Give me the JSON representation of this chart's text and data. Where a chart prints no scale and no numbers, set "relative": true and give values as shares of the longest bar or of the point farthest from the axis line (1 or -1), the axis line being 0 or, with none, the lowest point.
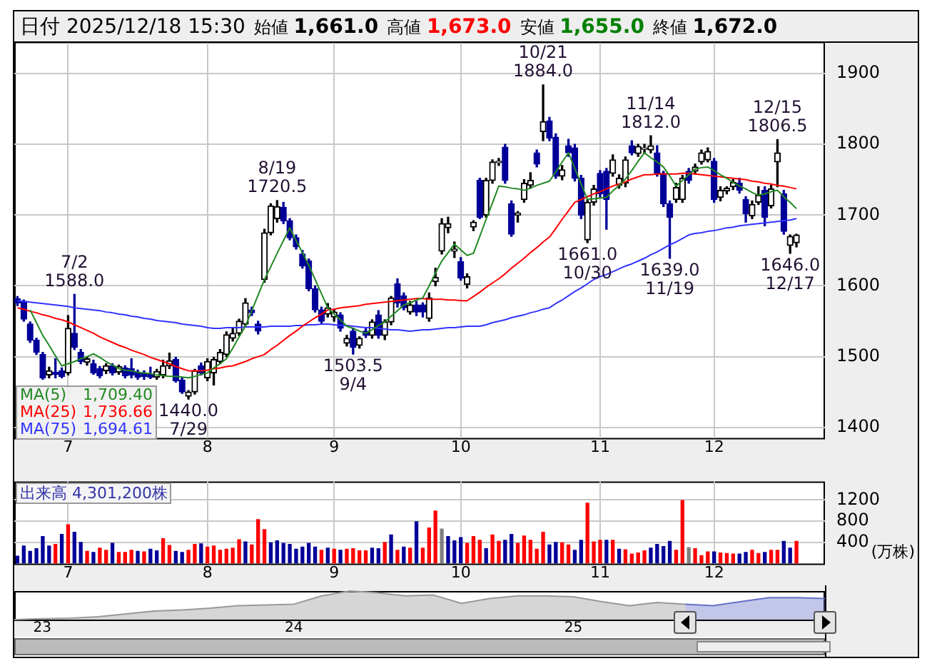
{
  "chart_data": [
    {
      "type": "candlestick",
      "title": "日付 2025/12/18 15:30",
      "annotations": [
        "始値 1,661.0",
        "高値 1,673.0",
        "安値 1,655.0",
        "終値 1,672.0",
        "1,709.40",
        "1,736.66",
        "1,694.61",
        {
          "text": "7/2\n1588.0",
          "y": 1588
        },
        {
          "text": "1440.0\n7/29",
          "y": 1440
        },
        {
          "text": "8/19\n1720.5",
          "y": 1720.5
        },
        {
          "text": "1503.5\n9/4",
          "y": 1503.5
        },
        {
          "text": "10/21\n1884.0",
          "y": 1884
        },
        {
          "text": "1661.0\n10/30",
          "y": 1661
        },
        {
          "text": "11/14\n1812.0",
          "y": 1812
        },
        {
          "text": "1639.0\n11/19",
          "y": 1639
        },
        {
          "text": "12/15\n1806.5",
          "y": 1806.5
        },
        {
          "text": "1646.0\n12/17",
          "y": 1646
        }
      ],
      "categories": [
        null,
        null,
        null,
        null,
        null,
        null,
        null,
        null,
        "7",
        null,
        null,
        null,
        null,
        null,
        null,
        null,
        null,
        null,
        null,
        null,
        null,
        null,
        null,
        null,
        null,
        null,
        null,
        null,
        null,
        null,
        "8",
        null,
        null,
        null,
        null,
        null,
        null,
        null,
        null,
        null,
        null,
        null,
        null,
        null,
        null,
        null,
        null,
        null,
        null,
        null,
        "9",
        null,
        null,
        null,
        null,
        null,
        null,
        null,
        null,
        null,
        null,
        null,
        null,
        null,
        null,
        null,
        null,
        null,
        null,
        null,
        "10",
        null,
        null,
        null,
        null,
        null,
        null,
        null,
        null,
        null,
        null,
        null,
        null,
        null,
        null,
        null,
        null,
        null,
        null,
        null,
        null,
        null,
        "11",
        null,
        null,
        null,
        null,
        null,
        null,
        null,
        null,
        null,
        null,
        null,
        null,
        null,
        null,
        null,
        null,
        null,
        "12",
        null,
        null,
        null,
        null,
        null,
        null,
        null,
        null,
        null,
        null,
        null,
        null,
        null,
        null,
        null,
        null,
        null
      ],
      "ohlc": [
        [
          1582,
          1585,
          1572,
          1576
        ],
        [
          1578,
          1580,
          1550,
          1553
        ],
        [
          1546,
          1549,
          1520,
          1523
        ],
        [
          1523,
          1526,
          1503,
          1506
        ],
        [
          1503,
          1506,
          1468,
          1470
        ],
        [
          1474,
          1485,
          1470,
          1480
        ],
        [
          1478,
          1497,
          1470,
          1475
        ],
        [
          1480,
          1484,
          1470,
          1472
        ],
        [
          1477,
          1558,
          1474,
          1540
        ],
        [
          1533,
          1588,
          1510,
          1513
        ],
        [
          1506,
          1510,
          1490,
          1493
        ],
        [
          1492,
          1500,
          1488,
          1497
        ],
        [
          1490,
          1495,
          1475,
          1477
        ],
        [
          1483,
          1486,
          1470,
          1473
        ],
        [
          1480,
          1490,
          1476,
          1487
        ],
        [
          1487,
          1490,
          1474,
          1477
        ],
        [
          1478,
          1488,
          1475,
          1486
        ],
        [
          1484,
          1487,
          1470,
          1473
        ],
        [
          1483,
          1497,
          1470,
          1474
        ],
        [
          1478,
          1481,
          1468,
          1471
        ],
        [
          1476,
          1480,
          1468,
          1472
        ],
        [
          1475,
          1485,
          1469,
          1471
        ],
        [
          1471,
          1482,
          1468,
          1479
        ],
        [
          1474,
          1495,
          1470,
          1487
        ],
        [
          1487,
          1505,
          1483,
          1494
        ],
        [
          1496,
          1499,
          1464,
          1466
        ],
        [
          1467,
          1470,
          1448,
          1450
        ],
        [
          1444,
          1452,
          1440,
          1450
        ],
        [
          1450,
          1482,
          1447,
          1480
        ],
        [
          1487,
          1491,
          1474,
          1477
        ],
        [
          1470,
          1497,
          1466,
          1493
        ],
        [
          1477,
          1499,
          1460,
          1496
        ],
        [
          1493,
          1510,
          1490,
          1506
        ],
        [
          1503,
          1535,
          1500,
          1531
        ],
        [
          1526,
          1540,
          1522,
          1533
        ],
        [
          1533,
          1553,
          1530,
          1550
        ],
        [
          1546,
          1582,
          1544,
          1576
        ],
        [
          1566,
          1570,
          1558,
          1562
        ],
        [
          1546,
          1550,
          1532,
          1536
        ],
        [
          1609,
          1680,
          1605,
          1675
        ],
        [
          1675,
          1716,
          1672,
          1713
        ],
        [
          1695,
          1720.5,
          1690,
          1712
        ],
        [
          1711,
          1718,
          1688,
          1692
        ],
        [
          1692,
          1695,
          1665,
          1668
        ],
        [
          1668,
          1672,
          1652,
          1655
        ],
        [
          1645,
          1650,
          1625,
          1628
        ],
        [
          1635,
          1638,
          1593,
          1596
        ],
        [
          1596,
          1600,
          1563,
          1566
        ],
        [
          1566,
          1570,
          1547,
          1550
        ],
        [
          1560,
          1575,
          1556,
          1569
        ],
        [
          1556,
          1566,
          1550,
          1563
        ],
        [
          1559,
          1562,
          1536,
          1540
        ],
        [
          1519,
          1530,
          1515,
          1526
        ],
        [
          1536,
          1540,
          1503.5,
          1513
        ],
        [
          1516,
          1528,
          1512,
          1526
        ],
        [
          1536,
          1540,
          1527,
          1530
        ],
        [
          1530,
          1552,
          1526,
          1549
        ],
        [
          1559,
          1565,
          1526,
          1530
        ],
        [
          1530,
          1552,
          1524,
          1549
        ],
        [
          1549,
          1585,
          1545,
          1583
        ],
        [
          1603,
          1610,
          1570,
          1576
        ],
        [
          1586,
          1590,
          1566,
          1569
        ],
        [
          1563,
          1578,
          1560,
          1573
        ],
        [
          1573,
          1578,
          1558,
          1563
        ],
        [
          1573,
          1576,
          1556,
          1563
        ],
        [
          1554,
          1590,
          1550,
          1583
        ],
        [
          1606,
          1625,
          1600,
          1612
        ],
        [
          1649,
          1695,
          1645,
          1688
        ],
        [
          1682,
          1697,
          1675,
          1688
        ],
        [
          1649,
          1662,
          1640,
          1652
        ],
        [
          1634,
          1640,
          1608,
          1611
        ],
        [
          1602,
          1617,
          1597,
          1613
        ],
        [
          1683,
          1692,
          1678,
          1690
        ],
        [
          1749,
          1752,
          1695,
          1697
        ],
        [
          1700,
          1752,
          1697,
          1749
        ],
        [
          1749,
          1778,
          1745,
          1775
        ],
        [
          1774,
          1780,
          1770,
          1776
        ],
        [
          1796,
          1800,
          1745,
          1749
        ],
        [
          1716,
          1720,
          1670,
          1673
        ],
        [
          1700,
          1705,
          1690,
          1703
        ],
        [
          1722,
          1750,
          1718,
          1745
        ],
        [
          1742,
          1760,
          1738,
          1749
        ],
        [
          1788,
          1792,
          1768,
          1772
        ],
        [
          1818,
          1884,
          1805,
          1832
        ],
        [
          1833,
          1838,
          1805,
          1809
        ],
        [
          1810,
          1815,
          1752,
          1755
        ],
        [
          1755,
          1770,
          1750,
          1764
        ],
        [
          1798,
          1807,
          1783,
          1788
        ],
        [
          1795,
          1800,
          1748,
          1752
        ],
        [
          1752,
          1756,
          1695,
          1700
        ],
        [
          1665,
          1722,
          1661,
          1718
        ],
        [
          1718,
          1742,
          1714,
          1737
        ],
        [
          1759,
          1763,
          1725,
          1730
        ],
        [
          1762,
          1766,
          1680,
          1722
        ],
        [
          1759,
          1785,
          1755,
          1778
        ],
        [
          1742,
          1757,
          1738,
          1752
        ],
        [
          1745,
          1782,
          1740,
          1778
        ],
        [
          1798,
          1805,
          1785,
          1788
        ],
        [
          1787,
          1800,
          1783,
          1797
        ],
        [
          1793,
          1800,
          1788,
          1795
        ],
        [
          1792,
          1812,
          1788,
          1798
        ],
        [
          1788,
          1798,
          1755,
          1759
        ],
        [
          1759,
          1762,
          1712,
          1716
        ],
        [
          1716,
          1720,
          1639,
          1697
        ],
        [
          1722,
          1745,
          1718,
          1739
        ],
        [
          1722,
          1756,
          1718,
          1752
        ],
        [
          1762,
          1766,
          1745,
          1749
        ],
        [
          1762,
          1772,
          1758,
          1768
        ],
        [
          1775,
          1792,
          1772,
          1788
        ],
        [
          1778,
          1795,
          1775,
          1790
        ],
        [
          1776,
          1780,
          1718,
          1722
        ],
        [
          1725,
          1740,
          1720,
          1735
        ],
        [
          1734,
          1740,
          1730,
          1738
        ],
        [
          1740,
          1750,
          1736,
          1746
        ],
        [
          1745,
          1752,
          1731,
          1735
        ],
        [
          1722,
          1726,
          1690,
          1702
        ],
        [
          1699,
          1720,
          1695,
          1715
        ],
        [
          1718,
          1740,
          1715,
          1728
        ],
        [
          1735,
          1740,
          1685,
          1697
        ],
        [
          1713,
          1742,
          1710,
          1737
        ],
        [
          1775,
          1806.5,
          1740,
          1788
        ],
        [
          1730,
          1735,
          1673,
          1677
        ],
        [
          1657,
          1672,
          1646,
          1670
        ],
        [
          1661,
          1673,
          1655,
          1672
        ],
        null,
        null,
        null,
        null
      ],
      "series": [
        {
          "name": "MA(5)",
          "type": "line",
          "color": "#228822",
          "values": [
            null,
            null,
            1566,
            1548,
            1530,
            1516,
            1501,
            1487,
            1490,
            1493,
            1497,
            1500,
            1504,
            1499,
            1493,
            1488,
            1483,
            1481,
            1480,
            1478,
            1477,
            1476,
            1474,
            1473,
            1472,
            1472,
            1471,
            1470,
            1472,
            1475,
            1477,
            1484,
            1490,
            1497,
            1512,
            1528,
            1543,
            1565,
            1587,
            1609,
            1627,
            1646,
            1664,
            1682,
            1664,
            1647,
            1629,
            1609,
            1589,
            1569,
            1560,
            1552,
            1543,
            1540,
            1536,
            1533,
            1538,
            1544,
            1549,
            1557,
            1565,
            1573,
            1576,
            1580,
            1583,
            1600,
            1618,
            1635,
            1647,
            1659,
            1651,
            1643,
            1646,
            1670,
            1694,
            1717,
            1741,
            1740,
            1738,
            1737,
            1735,
            1738,
            1742,
            1745,
            1748,
            1761,
            1775,
            1788,
            1766,
            1744,
            1722,
            1723,
            1724,
            1725,
            1734,
            1742,
            1751,
            1763,
            1776,
            1788,
            1781,
            1775,
            1768,
            1755,
            1741,
            1749,
            1757,
            1765,
            1767,
            1768,
            1763,
            1757,
            1752,
            1746,
            1741,
            1737,
            1732,
            1728,
            1730,
            1733,
            1735,
            1726,
            1718,
            1709,
            null,
            null,
            null,
            null
          ]
        },
        {
          "name": "MA(25)",
          "type": "line",
          "color": "#ff0000",
          "values": [
            1569,
            1567,
            1564,
            1562,
            1559,
            1557,
            1554,
            1552,
            1549,
            1545,
            1541,
            1537,
            1533,
            1528,
            1524,
            1520,
            1516,
            1513,
            1509,
            1506,
            1503,
            1499,
            1496,
            1493,
            1490,
            1486,
            1483,
            1480,
            1480,
            1480,
            1481,
            1483,
            1484,
            1486,
            1487,
            1490,
            1493,
            1497,
            1500,
            1503,
            1510,
            1516,
            1523,
            1530,
            1536,
            1543,
            1549,
            1555,
            1560,
            1566,
            1567,
            1569,
            1570,
            1571,
            1572,
            1574,
            1575,
            1576,
            1577,
            1578,
            1579,
            1580,
            1581,
            1582,
            1582,
            1581,
            1581,
            1581,
            1580,
            1580,
            1579,
            1579,
            1585,
            1591,
            1598,
            1604,
            1610,
            1617,
            1625,
            1632,
            1639,
            1647,
            1654,
            1662,
            1669,
            1681,
            1694,
            1706,
            1718,
            1722,
            1726,
            1730,
            1733,
            1737,
            1741,
            1744,
            1747,
            1751,
            1754,
            1757,
            1757,
            1758,
            1758,
            1758,
            1758,
            1759,
            1759,
            1758,
            1757,
            1756,
            1755,
            1754,
            1753,
            1752,
            1751,
            1750,
            1748,
            1747,
            1745,
            1744,
            1742,
            1741,
            1739,
            1737,
            null,
            null,
            null,
            null
          ]
        },
        {
          "name": "MA(75)",
          "type": "line",
          "color": "#3333ff",
          "values": [
            1579,
            1578,
            1577,
            1576,
            1575,
            1574,
            1573,
            1572,
            1571,
            1569,
            1568,
            1567,
            1566,
            1565,
            1563,
            1562,
            1560,
            1559,
            1557,
            1556,
            1554,
            1553,
            1551,
            1550,
            1549,
            1548,
            1546,
            1545,
            1544,
            1543,
            1541,
            1540,
            1540,
            1541,
            1541,
            1541,
            1542,
            1542,
            1542,
            1542,
            1543,
            1543,
            1543,
            1543,
            1544,
            1544,
            1545,
            1545,
            1546,
            1546,
            1545,
            1544,
            1544,
            1543,
            1542,
            1541,
            1541,
            1540,
            1539,
            1538,
            1538,
            1537,
            1536,
            1537,
            1538,
            1538,
            1539,
            1540,
            1541,
            1541,
            1542,
            1543,
            1543,
            1543,
            1545,
            1548,
            1550,
            1552,
            1555,
            1557,
            1559,
            1562,
            1564,
            1567,
            1569,
            1575,
            1580,
            1586,
            1592,
            1597,
            1603,
            1609,
            1613,
            1616,
            1620,
            1624,
            1628,
            1631,
            1635,
            1639,
            1644,
            1648,
            1653,
            1658,
            1662,
            1667,
            1672,
            1674,
            1675,
            1677,
            1678,
            1680,
            1682,
            1683,
            1685,
            1686,
            1687,
            1688,
            1689,
            1690,
            1691,
            1692,
            1693,
            1695,
            null,
            null,
            null,
            null
          ]
        }
      ],
      "ylim": [
        1385,
        1945
      ],
      "yticks": [
        1400,
        1500,
        1600,
        1700,
        1800,
        1900
      ],
      "grid": true,
      "legend": "bottom left"
    },
    {
      "type": "bar",
      "title": "出来高 4,301,200株",
      "ylabel": "(万株)",
      "categories": [
        null,
        null,
        null,
        null,
        null,
        null,
        null,
        null,
        "7",
        null,
        null,
        null,
        null,
        null,
        null,
        null,
        null,
        null,
        null,
        null,
        null,
        null,
        null,
        null,
        null,
        null,
        null,
        null,
        null,
        null,
        "8",
        null,
        null,
        null,
        null,
        null,
        null,
        null,
        null,
        null,
        null,
        null,
        null,
        null,
        null,
        null,
        null,
        null,
        null,
        null,
        "9",
        null,
        null,
        null,
        null,
        null,
        null,
        null,
        null,
        null,
        null,
        null,
        null,
        null,
        null,
        null,
        null,
        null,
        null,
        null,
        "10",
        null,
        null,
        null,
        null,
        null,
        null,
        null,
        null,
        null,
        null,
        null,
        null,
        null,
        null,
        null,
        null,
        null,
        null,
        null,
        null,
        null,
        "11",
        null,
        null,
        null,
        null,
        null,
        null,
        null,
        null,
        null,
        null,
        null,
        null,
        null,
        null,
        null,
        null,
        null,
        "12",
        null,
        null,
        null,
        null,
        null,
        null,
        null,
        null,
        null,
        null,
        null,
        null,
        null,
        null,
        null,
        null,
        null
      ],
      "values": [
        150,
        340,
        240,
        290,
        520,
        340,
        370,
        560,
        740,
        600,
        410,
        240,
        220,
        300,
        260,
        390,
        220,
        220,
        260,
        240,
        230,
        280,
        250,
        480,
        350,
        240,
        220,
        260,
        370,
        380,
        320,
        340,
        260,
        280,
        300,
        460,
        420,
        360,
        840,
        650,
        400,
        440,
        390,
        370,
        280,
        320,
        390,
        320,
        260,
        300,
        280,
        260,
        280,
        290,
        250,
        250,
        300,
        290,
        410,
        550,
        260,
        320,
        300,
        800,
        300,
        680,
        1000,
        660,
        520,
        440,
        500,
        390,
        520,
        450,
        290,
        550,
        430,
        450,
        560,
        390,
        530,
        450,
        280,
        600,
        360,
        410,
        400,
        360,
        260,
        450,
        1150,
        420,
        450,
        450,
        450,
        280,
        270,
        190,
        210,
        250,
        300,
        370,
        330,
        430,
        260,
        1200,
        310,
        290,
        160,
        230,
        230,
        210,
        200,
        190,
        190,
        220,
        260,
        200,
        220,
        260,
        260,
        430,
        300,
        430,
        null,
        null,
        null,
        null
      ],
      "colors": [
        "#000099",
        "#000099",
        "#000099",
        "#000099",
        "#000099",
        "#000099",
        "#ff0000",
        "#000099",
        "#ff0000",
        "#000099",
        "#000099",
        "#ff0000",
        "#000099",
        "#ff0000",
        "#ff0000",
        "#000099",
        "#ff0000",
        "#ff0000",
        "#ff0000",
        "#000099",
        "#ff0000",
        "#000099",
        "#000099",
        "#ff0000",
        "#ff0000",
        "#000099",
        "#000099",
        "#ff0000",
        "#ff0000",
        "#000099",
        "#ff0000",
        "#ff0000",
        "#ff0000",
        "#ff0000",
        "#ff0000",
        "#ff0000",
        "#000099",
        "#ff0000",
        "#ff0000",
        "#ff0000",
        "#000099",
        "#000099",
        "#000099",
        "#000099",
        "#000099",
        "#000099",
        "#000099",
        "#000099",
        "#ff0000",
        "#000099",
        "#ff0000",
        "#000099",
        "#ff0000",
        "#ff0000",
        "#ff0000",
        "#ff0000",
        "#000099",
        "#000099",
        "#ff0000",
        "#000099",
        "#ff0000",
        "#000099",
        "#ff0000",
        "#000099",
        "#ff0000",
        "#ff0000",
        "#ff0000",
        "#808080",
        "#000099",
        "#000099",
        "#000099",
        "#ff0000",
        "#ff0000",
        "#ff0000",
        "#000099",
        "#ff0000",
        "#ff0000",
        "#000099",
        "#000099",
        "#ff0000",
        "#ff0000",
        "#ff0000",
        "#ff0000",
        "#ff0000",
        "#000099",
        "#000099",
        "#ff0000",
        "#ff0000",
        "#000099",
        "#000099",
        "#ff0000",
        "#ff0000",
        "#ff0000",
        "#000099",
        "#ff0000",
        "#000099",
        "#ff0000",
        "#ff0000",
        "#ff0000",
        "#ff0000",
        "#000099",
        "#000099",
        "#000099",
        "#000099",
        "#ff0000",
        "#ff0000",
        "#808080",
        "#ff0000",
        "#ff0000",
        "#ff0000",
        "#000099",
        "#ff0000",
        "#ff0000",
        "#ff0000",
        "#000099",
        "#000099",
        "#ff0000",
        "#ff0000",
        "#000099",
        "#ff0000",
        "#ff0000",
        "#000099",
        "#000099",
        "#ff0000",
        null,
        null,
        null,
        null
      ],
      "ylim": [
        0,
        1550
      ],
      "yticks": [
        400,
        800,
        1200
      ],
      "grid": true
    },
    {
      "type": "area",
      "relative": true,
      "categories": [
        null,
        "23",
        null,
        null,
        null,
        null,
        null,
        null,
        null,
        null,
        "24",
        null,
        null,
        null,
        null,
        null,
        null,
        null,
        null,
        null,
        "25",
        null,
        null,
        null,
        null,
        null,
        null,
        null,
        null,
        null
      ],
      "series": [
        {
          "color": "#999999",
          "values": [
            0,
            0.03,
            0.05,
            0.1,
            0.2,
            0.3,
            0.34,
            0.4,
            0.49,
            0.51,
            0.54,
            0.83,
            1,
            0.94,
            0.83,
            0.86,
            0.57,
            0.74,
            0.83,
            0.83,
            0.8,
            0.63,
            0.49,
            0.6,
            0.54,
            null,
            null,
            null,
            null,
            null
          ]
        },
        {
          "color": "#6670c8",
          "values": [
            null,
            null,
            null,
            null,
            null,
            null,
            null,
            null,
            null,
            null,
            null,
            null,
            null,
            null,
            null,
            null,
            null,
            null,
            null,
            null,
            null,
            null,
            null,
            null,
            0.54,
            0.49,
            0.63,
            0.77,
            0.77,
            0.74
          ]
        }
      ]
    }
  ]
}
